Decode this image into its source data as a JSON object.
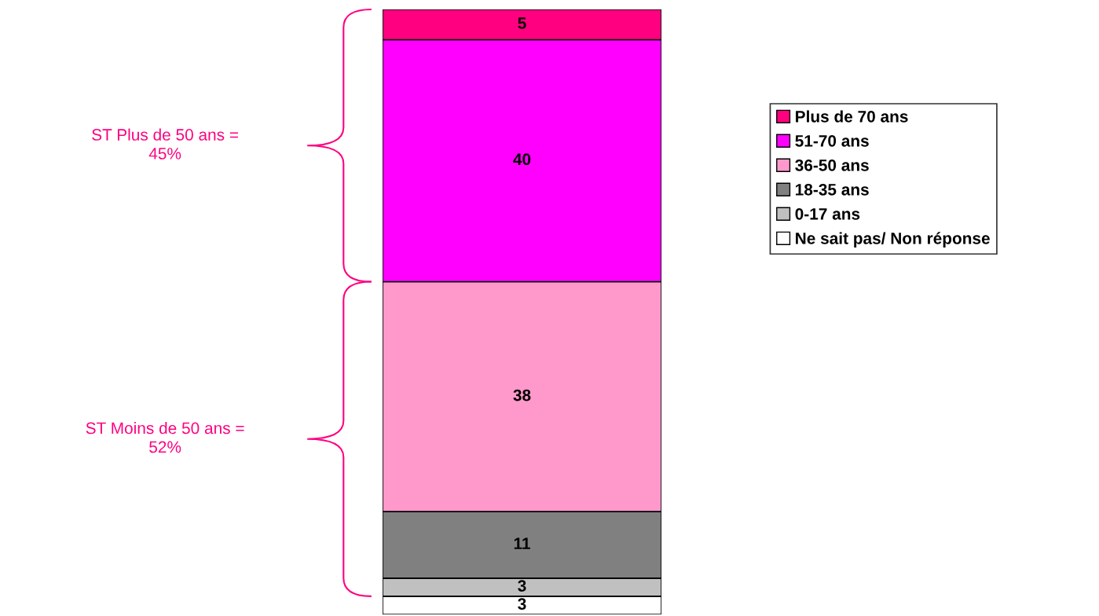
{
  "chart_data": {
    "type": "bar",
    "stacked": true,
    "categories": [
      null
    ],
    "series": [
      {
        "name": "Ne sait pas/ Non réponse",
        "color": "#ffffff",
        "values": [
          3
        ]
      },
      {
        "name": "0-17 ans",
        "color": "#c0c0c0",
        "values": [
          3
        ]
      },
      {
        "name": "18-35 ans",
        "color": "#808080",
        "values": [
          11
        ]
      },
      {
        "name": "36-50 ans",
        "color": "#ff99cc",
        "values": [
          38
        ]
      },
      {
        "name": "51-70 ans",
        "color": "#ff00ff",
        "values": [
          40
        ]
      },
      {
        "name": "Plus de 70 ans",
        "color": "#ff0080",
        "values": [
          5
        ]
      }
    ],
    "data_labels": true,
    "legend": "right",
    "grid": false,
    "annotations": [
      "ST Plus de 50 ans =\n45%",
      "ST Moins de 50 ans =\n52%"
    ]
  }
}
